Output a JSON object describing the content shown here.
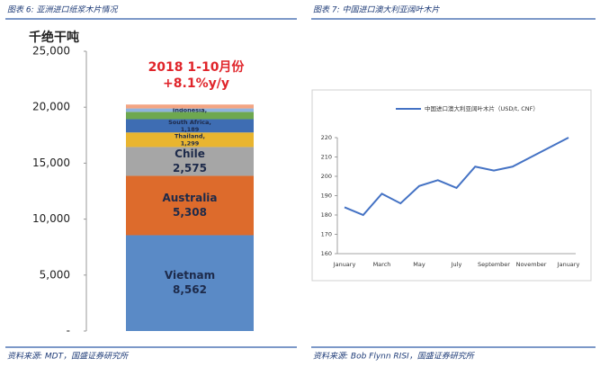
{
  "figures": [
    {
      "caption": "图表 6: 亚洲进口纸浆木片情况",
      "source": "资料来源: MDT，国盛证券研究所"
    },
    {
      "caption": "图表 7: 中国进口澳大利亚阔叶木片",
      "source": "资料来源: Bob Flynn RISI，国盛证券研究所"
    }
  ],
  "chart_data": [
    {
      "type": "bar",
      "stacked": true,
      "y_label": "千绝干吨",
      "annotations": [
        "2018 1-10月份",
        "+8.1%y/y"
      ],
      "categories": [
        null
      ],
      "series": [
        {
          "name": "Vietnam",
          "color": "#5a8ac6",
          "values": [
            8562
          ],
          "value_labels": [
            "8,562"
          ]
        },
        {
          "name": "Australia",
          "color": "#dd6b2c",
          "values": [
            5308
          ],
          "value_labels": [
            "5,308"
          ]
        },
        {
          "name": "Chile",
          "color": "#a6a6a6",
          "values": [
            2575
          ],
          "value_labels": [
            "2,575"
          ]
        },
        {
          "name": "Thailand,",
          "color": "#e9b52f",
          "values": [
            1299
          ],
          "value_labels": [
            "1,299"
          ]
        },
        {
          "name": "South Africa,",
          "color": "#3e6db3",
          "values": [
            1189
          ],
          "value_labels": [
            "1,189"
          ]
        },
        {
          "color": "#6ea84f",
          "values": [
            650
          ]
        },
        {
          "name": "Indonesia,",
          "color": "#8fb3de",
          "values": [
            307
          ]
        },
        {
          "color": "#f3a583",
          "values": [
            350
          ]
        }
      ],
      "ylim": [
        0,
        25000
      ],
      "yticks": [
        {
          "value": 0,
          "label": "-"
        },
        {
          "value": 5000,
          "label": "5,000"
        },
        {
          "value": 10000,
          "label": "10,000"
        },
        {
          "value": 15000,
          "label": "15,000"
        },
        {
          "value": 20000,
          "label": "20,000"
        },
        {
          "value": 25000,
          "label": "25,000"
        }
      ]
    },
    {
      "type": "line",
      "categories": [
        "January",
        null,
        "March",
        null,
        "May",
        null,
        "July",
        null,
        "September",
        null,
        "November",
        null,
        "January"
      ],
      "series": [
        {
          "name": "中国进口澳大利亚阔叶木片（USD/t, CNF）",
          "color": "#4472c4",
          "values": [
            184,
            180,
            191,
            186,
            195,
            198,
            194,
            205,
            203,
            205,
            210,
            215,
            220
          ]
        }
      ],
      "ylim": [
        160,
        220
      ],
      "yticks": [
        160,
        170,
        180,
        190,
        200,
        210,
        220
      ],
      "legend": "top"
    }
  ]
}
